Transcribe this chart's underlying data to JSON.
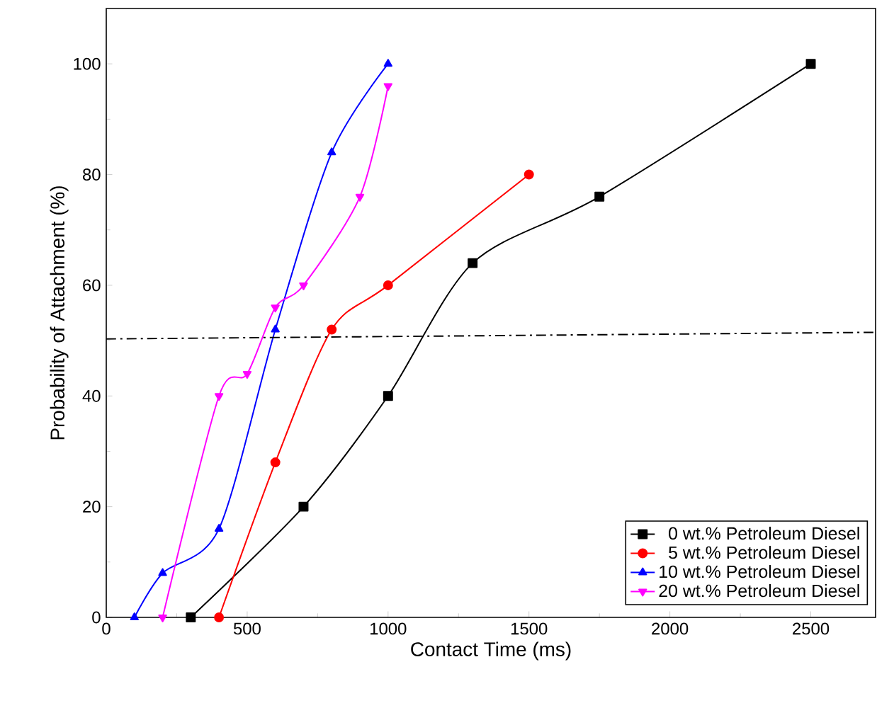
{
  "chart_data": {
    "type": "line",
    "xlabel": "Contact Time (ms)",
    "ylabel": "Probability of Attachment (%)",
    "xlim": [
      0,
      2730
    ],
    "ylim": [
      0,
      110
    ],
    "xticks": [
      0,
      500,
      1000,
      1500,
      2000,
      2500
    ],
    "yticks": [
      0,
      20,
      40,
      60,
      80,
      100
    ],
    "legend": "bottom right",
    "grid": false,
    "series": [
      {
        "name": "0 wt.% Petroleum Diesel",
        "color": "#000000",
        "marker": "square",
        "x": [
          300,
          700,
          1000,
          1300,
          1750,
          2500
        ],
        "values": [
          0,
          20,
          40,
          64,
          76,
          100
        ]
      },
      {
        "name": "5 wt.% Petroleum Diesel",
        "color": "#ff0000",
        "marker": "circle",
        "x": [
          400,
          600,
          800,
          1000,
          1500
        ],
        "values": [
          0,
          28,
          52,
          60,
          80
        ]
      },
      {
        "name": "10 wt.% Petroleum Diesel",
        "color": "#0000ff",
        "marker": "triangle",
        "x": [
          100,
          200,
          400,
          600,
          800,
          1000
        ],
        "values": [
          0,
          8,
          16,
          52,
          84,
          100
        ]
      },
      {
        "name": "20 wt.% Petroleum Diesel",
        "color": "#ff00ff",
        "marker": "triangle-down",
        "x": [
          200,
          400,
          500,
          600,
          700,
          900,
          1000
        ],
        "values": [
          0,
          40,
          44,
          56,
          60,
          76,
          96
        ]
      },
      {
        "color": "#000000",
        "marker": "none",
        "line_style": "dashdot",
        "x": [
          0,
          2730
        ],
        "values": [
          50.3,
          51.5
        ]
      }
    ]
  }
}
